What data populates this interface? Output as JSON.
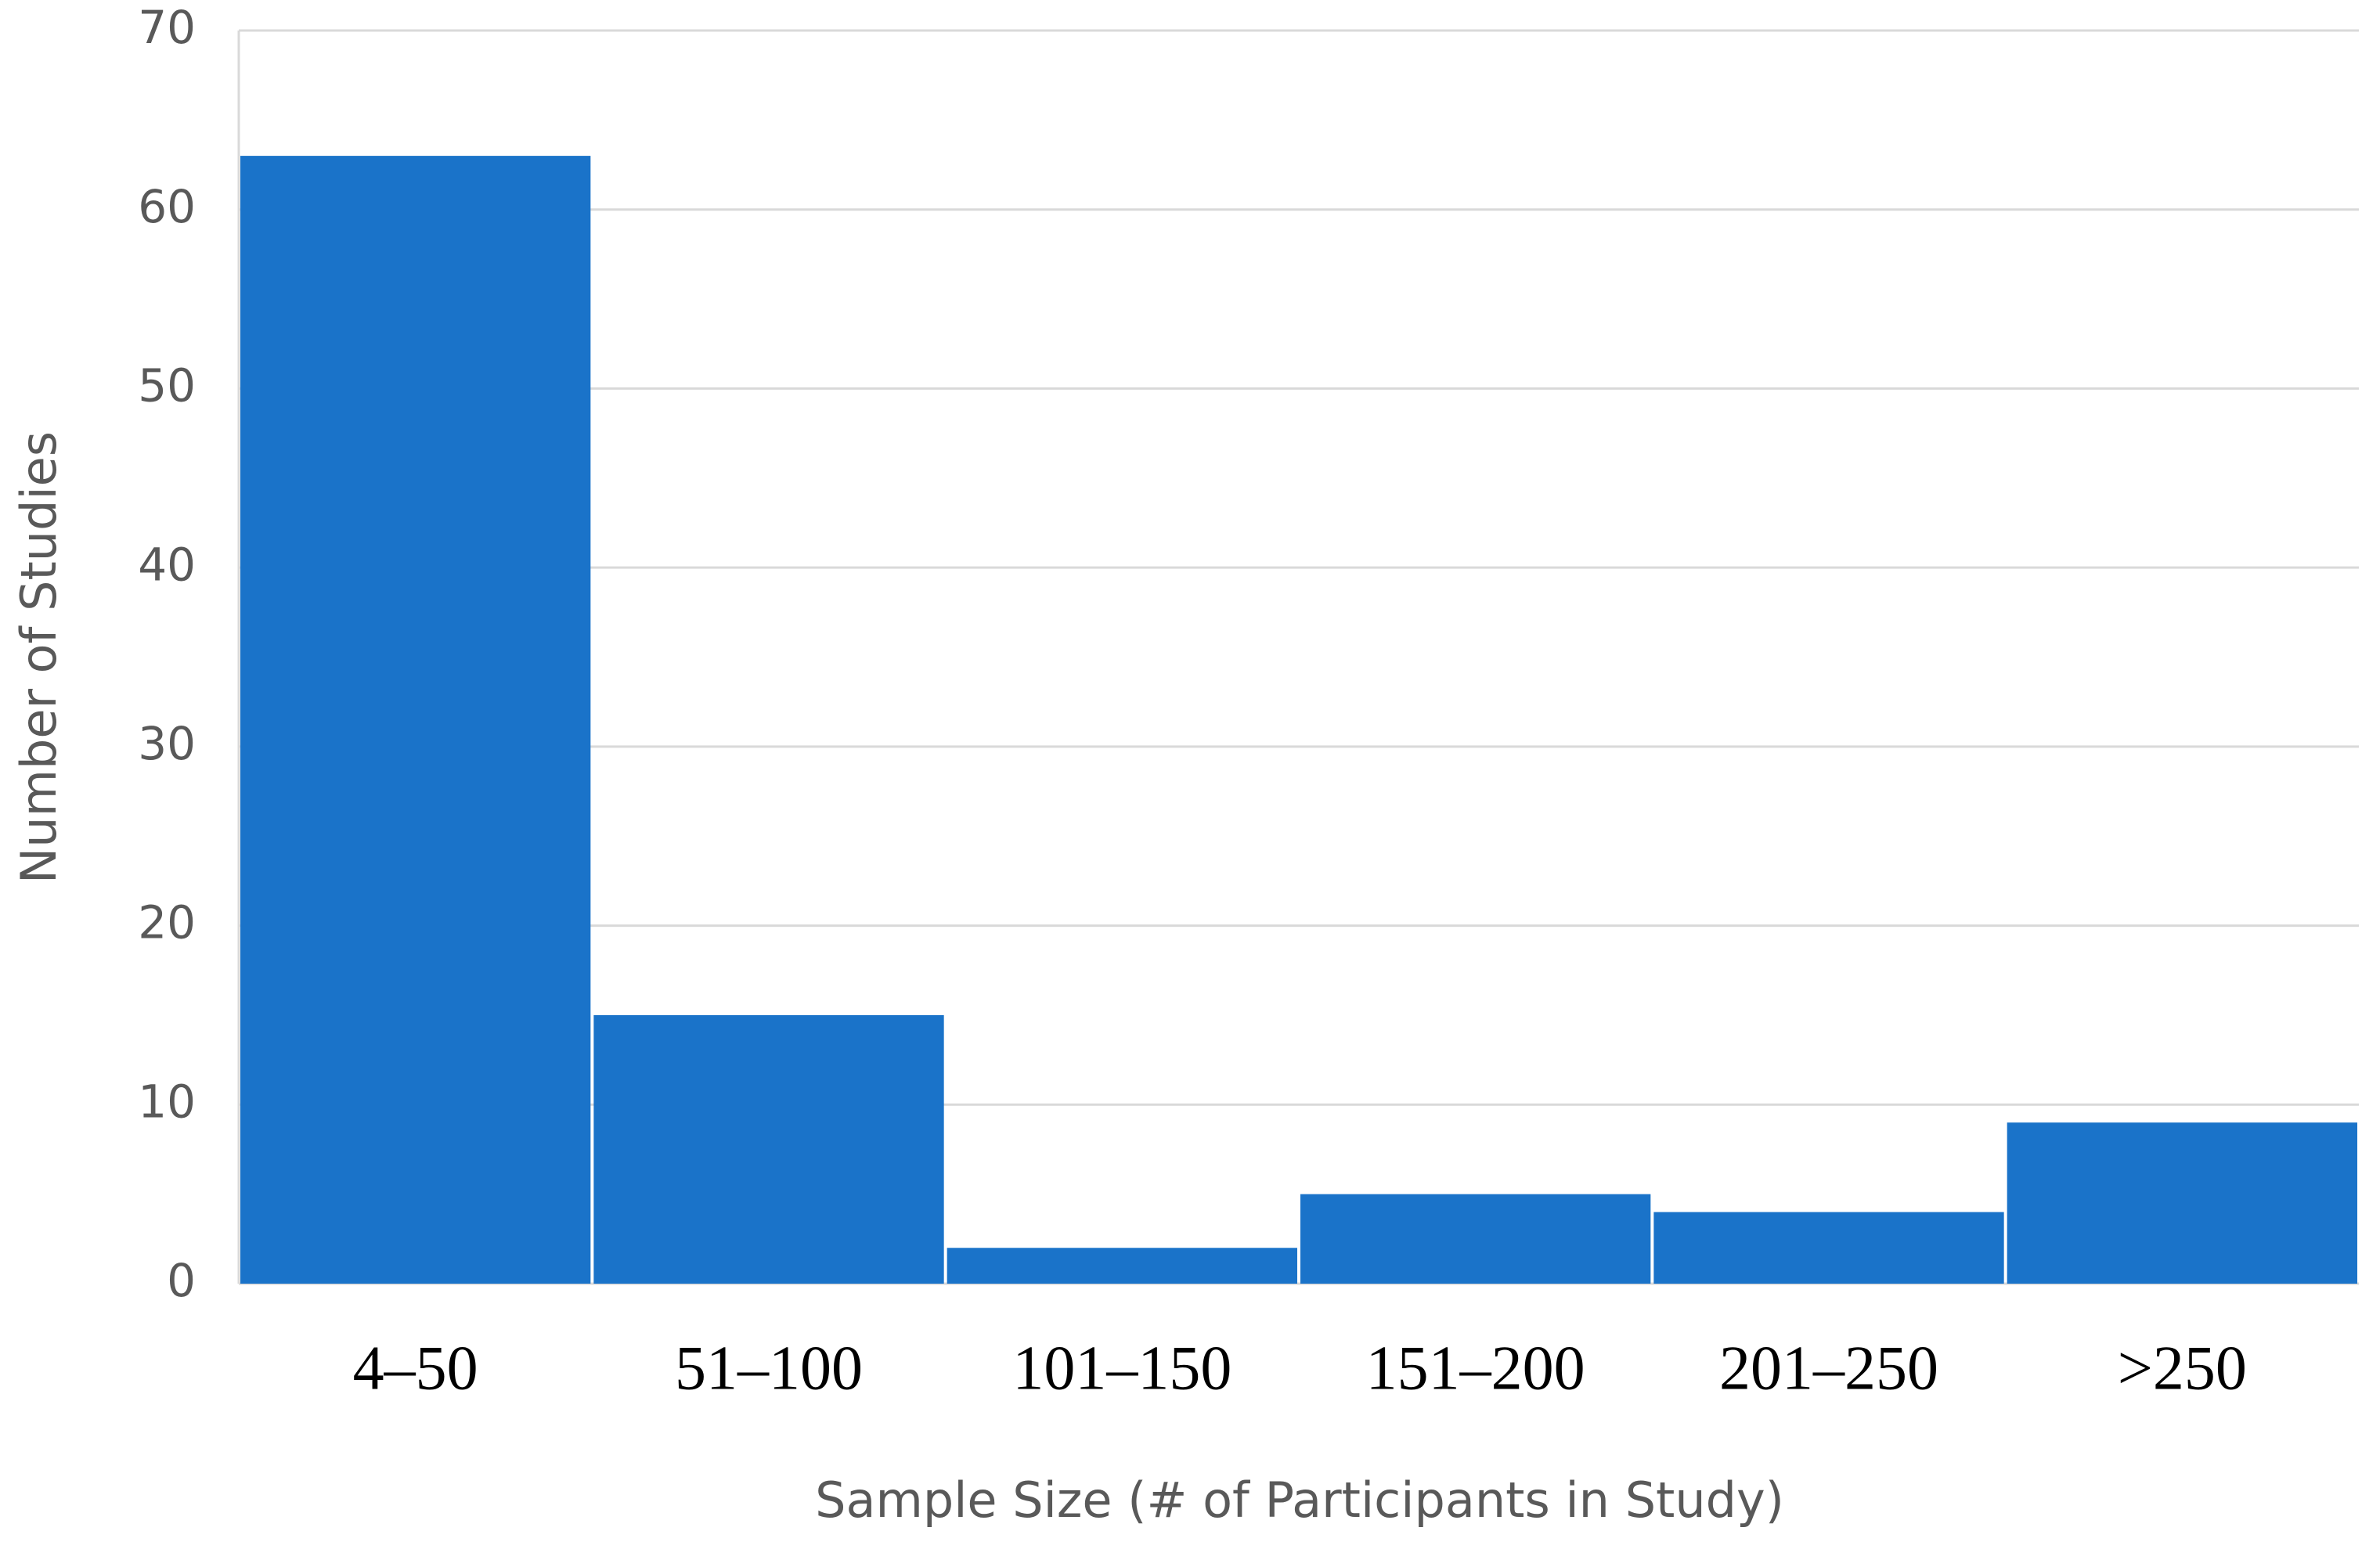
{
  "chart_data": {
    "type": "bar",
    "x_label": "Sample Size (# of Participants in Study)",
    "y_label": "Number of Studies",
    "categories": [
      "4–50",
      "51–100",
      "101–150",
      "151–200",
      "201–250",
      ">250"
    ],
    "values": [
      63,
      15,
      2,
      5,
      4,
      9
    ],
    "color": "#1a73c9",
    "ylim": [
      0,
      70
    ],
    "yticks": [
      0,
      10,
      20,
      30,
      40,
      50,
      60,
      70
    ],
    "grid": true
  }
}
